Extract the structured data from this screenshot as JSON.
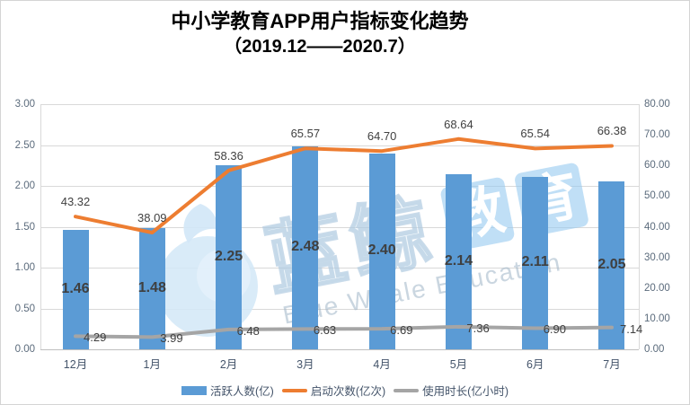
{
  "title": {
    "line1": "中小学教育APP用户指标变化趋势",
    "line2": "（2019.12——2020.7）"
  },
  "chart_data": {
    "type": "bar+line combo",
    "categories": [
      "12月",
      "1月",
      "2月",
      "3月",
      "4月",
      "5月",
      "6月",
      "7月"
    ],
    "series": [
      {
        "name": "活跃人数(亿)",
        "type": "bar",
        "axis": "left",
        "color": "#5B9BD5",
        "values": [
          1.46,
          1.48,
          2.25,
          2.48,
          2.4,
          2.14,
          2.11,
          2.05
        ],
        "labels": [
          "1.46",
          "1.48",
          "2.25",
          "2.48",
          "2.40",
          "2.14",
          "2.11",
          "2.05"
        ]
      },
      {
        "name": "启动次数(亿次)",
        "type": "line",
        "axis": "right",
        "color": "#ED7D31",
        "values": [
          43.32,
          38.09,
          58.36,
          65.57,
          64.7,
          68.64,
          65.54,
          66.38
        ],
        "labels": [
          "43.32",
          "38.09",
          "58.36",
          "65.57",
          "64.70",
          "68.64",
          "65.54",
          "66.38"
        ]
      },
      {
        "name": "使用时长(亿小时)",
        "type": "line",
        "axis": "right",
        "color": "#A5A5A5",
        "values": [
          4.29,
          3.99,
          6.48,
          6.63,
          6.69,
          7.36,
          6.9,
          7.14
        ],
        "labels": [
          "4.29",
          "3.99",
          "6.48",
          "6.63",
          "6.69",
          "7.36",
          "6.90",
          "7.14"
        ]
      }
    ],
    "left_axis": {
      "min": 0,
      "max": 3,
      "step": 0.5,
      "ticks": [
        "3.00",
        "2.50",
        "2.00",
        "1.50",
        "1.00",
        "0.50",
        "0.00"
      ]
    },
    "right_axis": {
      "min": 0,
      "max": 80,
      "step": 10,
      "ticks": [
        "80.00",
        "70.00",
        "60.00",
        "50.00",
        "40.00",
        "30.00",
        "20.00",
        "10.00",
        "0.00"
      ]
    },
    "gridlines": true,
    "legend_position": "bottom"
  },
  "watermark": {
    "cn_outline": "蓝鲸",
    "cn_block1": "教",
    "cn_block2": "育",
    "en": "Blue Whale Education"
  },
  "colors": {
    "bar": "#5B9BD5",
    "line_orange": "#ED7D31",
    "line_gray": "#A5A5A5",
    "gridline": "#D9D9D9",
    "axis_text": "#44546A",
    "data_label": "#404040",
    "watermark_blue": "#CFE6F7"
  }
}
